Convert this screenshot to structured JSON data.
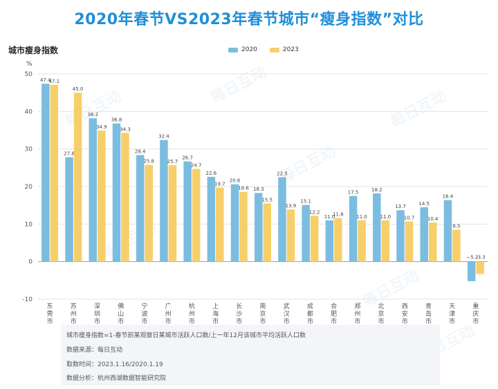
{
  "title": "2020年春节VS2023年春节城市“瘦身指数”对比",
  "watermark": "每日互动",
  "chart_data": {
    "type": "bar",
    "title": "2020年春节VS2023年春节城市“瘦身指数”对比",
    "ylabel": "城市瘦身指数",
    "unit": "%",
    "ylim": [
      -10,
      50
    ],
    "yticks": [
      50,
      40,
      30,
      20,
      10,
      0,
      -10
    ],
    "categories": [
      "东莞市",
      "苏州市",
      "深圳市",
      "佛山市",
      "宁波市",
      "广州市",
      "杭州市",
      "上海市",
      "长沙市",
      "南京市",
      "武汉市",
      "成都市",
      "合肥市",
      "郑州市",
      "北京市",
      "西安市",
      "青岛市",
      "天津市",
      "重庆市"
    ],
    "series": [
      {
        "name": "2020",
        "color": "#7bbde0",
        "values": [
          47.4,
          27.8,
          38.2,
          36.8,
          28.4,
          32.4,
          26.7,
          22.6,
          20.6,
          18.3,
          22.5,
          15.1,
          11.0,
          17.5,
          18.2,
          13.7,
          14.5,
          16.4,
          -5.2
        ]
      },
      {
        "name": "2023",
        "color": "#f7cf6a",
        "values": [
          47.1,
          45.0,
          34.9,
          34.3,
          25.8,
          25.7,
          24.7,
          19.7,
          18.6,
          15.5,
          13.9,
          12.2,
          11.6,
          11.0,
          11.0,
          10.7,
          10.4,
          8.5,
          -3.3
        ]
      }
    ],
    "grid": true,
    "legend": "top-center"
  },
  "notes": {
    "definition": "城市瘦身指数=1-春节前某观察日某城市活跃人口数/上一年12月该城市平均活跃人口数",
    "source": "数据来源：每日互动",
    "time": "取数时间：2023.1.16/2020.1.19",
    "analysis": "数据分析：杭州西湖数据智能研究院"
  }
}
